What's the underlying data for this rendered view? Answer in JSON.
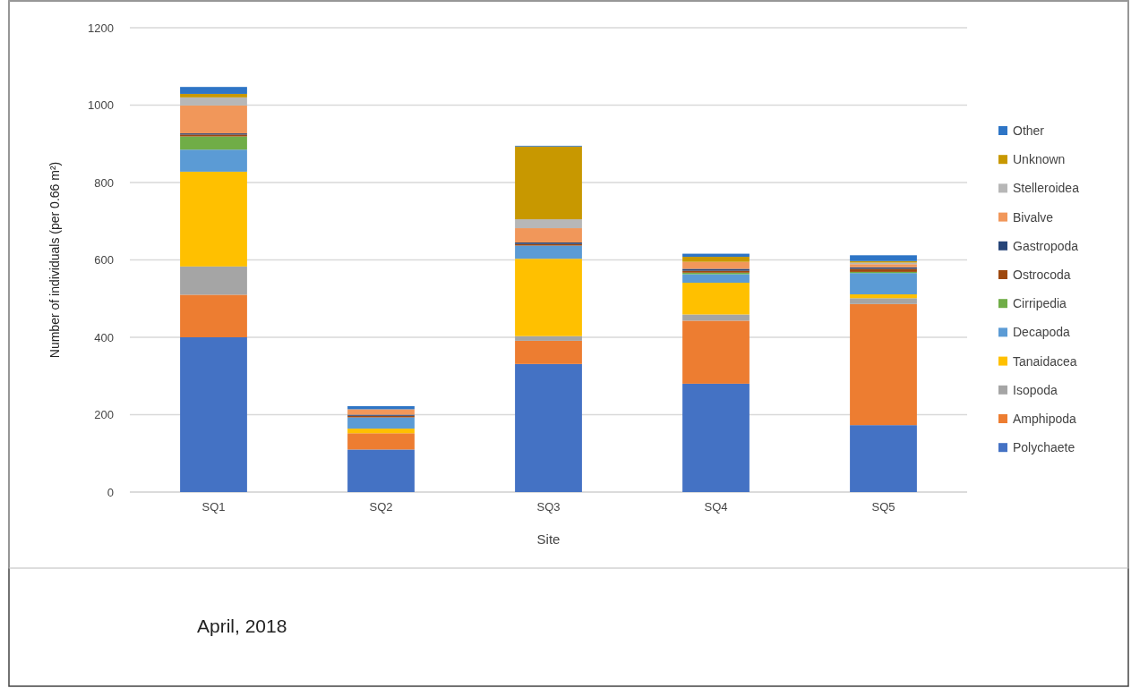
{
  "chart_data": {
    "type": "bar",
    "stacked": true,
    "xlabel": "Site",
    "ylabel": "Number of individuals (per 0.66 m²)",
    "categories": [
      "SQ1",
      "SQ2",
      "SQ3",
      "SQ4",
      "SQ5"
    ],
    "ylim": [
      0,
      1200
    ],
    "yticks": [
      0,
      200,
      400,
      600,
      800,
      1000,
      1200
    ],
    "grid": "y",
    "legend": "right",
    "annotations": [
      "April, 2018"
    ],
    "series": [
      {
        "name": "Polychaete",
        "color": "#4472c4",
        "values": [
          400,
          110,
          331,
          280,
          173
        ]
      },
      {
        "name": "Amphipoda",
        "color": "#ed7d31",
        "values": [
          110,
          42,
          60,
          163,
          313
        ]
      },
      {
        "name": "Isopoda",
        "color": "#a5a5a5",
        "values": [
          73,
          0,
          12,
          16,
          15
        ]
      },
      {
        "name": "Tanaidacea",
        "color": "#ffc000",
        "values": [
          245,
          12,
          200,
          82,
          10
        ]
      },
      {
        "name": "Decapoda",
        "color": "#5b9bd5",
        "values": [
          57,
          29,
          34,
          22,
          55
        ]
      },
      {
        "name": "Cirripedia",
        "color": "#70ad47",
        "values": [
          34,
          0,
          null,
          4,
          3
        ]
      },
      {
        "name": "Ostrocoda",
        "color": "#9e480e",
        "values": [
          5,
          4,
          4,
          5,
          8
        ]
      },
      {
        "name": "Gastropoda",
        "color": "#264478",
        "values": [
          3,
          3,
          4,
          5,
          4
        ]
      },
      {
        "name": "Bivalve",
        "color": "#f1975a",
        "values": [
          72,
          14,
          37,
          18,
          8
        ]
      },
      {
        "name": "Stelleroidea",
        "color": "#b7b7b7",
        "values": [
          21,
          null,
          23,
          null,
          4
        ]
      },
      {
        "name": "Unknown",
        "color": "#c89800",
        "values": [
          9,
          0,
          188,
          13,
          4
        ]
      },
      {
        "name": "Other",
        "color": "#2e75c6",
        "values": [
          18,
          8,
          2,
          8,
          15
        ]
      }
    ]
  }
}
